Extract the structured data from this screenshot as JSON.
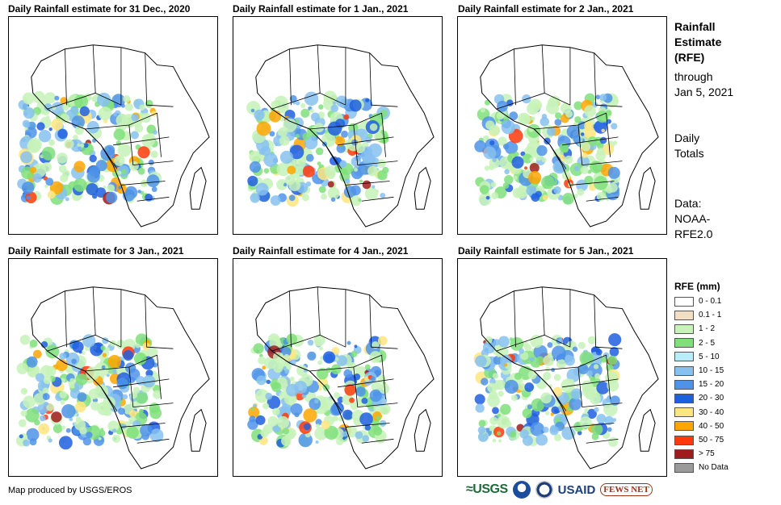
{
  "panels": [
    {
      "title": "Daily Rainfall estimate for 31 Dec., 2020"
    },
    {
      "title": "Daily Rainfall estimate for 1 Jan., 2021"
    },
    {
      "title": "Daily Rainfall estimate for 2 Jan., 2021"
    },
    {
      "title": "Daily Rainfall estimate for 3 Jan., 2021"
    },
    {
      "title": "Daily Rainfall estimate for 4 Jan., 2021"
    },
    {
      "title": "Daily Rainfall estimate for 5 Jan., 2021"
    }
  ],
  "side": {
    "title_line1": "Rainfall",
    "title_line2": "Estimate",
    "title_line3": "(RFE)",
    "through_line1": "through",
    "through_line2": "Jan 5, 2021",
    "totals_line1": "Daily",
    "totals_line2": "Totals",
    "source_line1": "Data:",
    "source_line2": "NOAA-",
    "source_line3": "RFE2.0"
  },
  "legend": {
    "title": "RFE (mm)",
    "items": [
      {
        "label": "0 - 0.1",
        "color": "#ffffff"
      },
      {
        "label": "0.1 - 1",
        "color": "#f2dfc3"
      },
      {
        "label": "1 - 2",
        "color": "#c7f2b8"
      },
      {
        "label": "2 - 5",
        "color": "#7fe07a"
      },
      {
        "label": "5 - 10",
        "color": "#b8ecf8"
      },
      {
        "label": "10 - 15",
        "color": "#86c1f0"
      },
      {
        "label": "15 - 20",
        "color": "#4e93e8"
      },
      {
        "label": "20 - 30",
        "color": "#1f5fe0"
      },
      {
        "label": "30 - 40",
        "color": "#ffe680"
      },
      {
        "label": "40 - 50",
        "color": "#ffa600"
      },
      {
        "label": "50 - 75",
        "color": "#ff3a0a"
      },
      {
        "label": "> 75",
        "color": "#a01c1c"
      },
      {
        "label": "No Data",
        "color": "#9a9a9a"
      }
    ]
  },
  "credit": "Map produced by USGS/EROS",
  "logos": {
    "usgs": "≈USGS",
    "usaid": "USAID",
    "fews": "FEWS NET"
  }
}
